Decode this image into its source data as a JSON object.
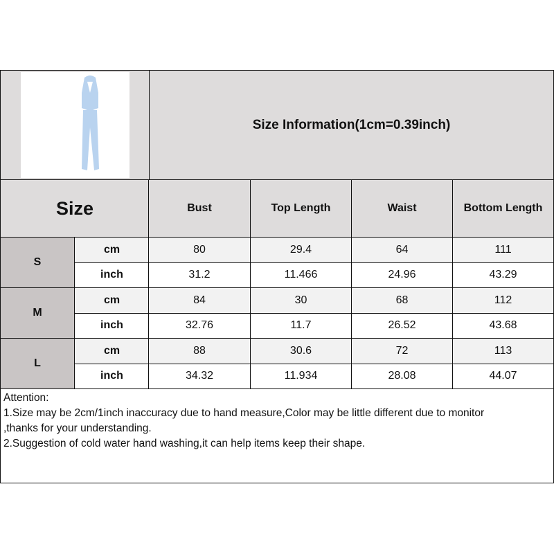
{
  "title": "Size Information(1cm=0.39inch)",
  "size_label": "Size",
  "columns": [
    "Bust",
    "Top Length",
    "Waist",
    "Bottom Length"
  ],
  "units": {
    "cm": "cm",
    "inch": "inch"
  },
  "rows": [
    {
      "size": "S",
      "cm": [
        "80",
        "29.4",
        "64",
        "111"
      ],
      "inch": [
        "31.2",
        "11.466",
        "24.96",
        "43.29"
      ]
    },
    {
      "size": "M",
      "cm": [
        "84",
        "30",
        "68",
        "112"
      ],
      "inch": [
        "32.76",
        "11.7",
        "26.52",
        "43.68"
      ]
    },
    {
      "size": "L",
      "cm": [
        "88",
        "30.6",
        "72",
        "113"
      ],
      "inch": [
        "34.32",
        "11.934",
        "28.08",
        "44.07"
      ]
    }
  ],
  "attention": {
    "heading": "Attention:",
    "line1": "1.Size may be 2cm/1inch inaccuracy due to hand measure,Color may be little different due to monitor",
    "line1b": ",thanks for your understanding.",
    "line2": "2.Suggestion of cold water hand washing,it can help items keep their shape."
  },
  "colors": {
    "header": "#dedcdc",
    "size_cell": "#c9c5c5",
    "cm_row": "#f2f2f2",
    "garment": "#b9d3ef"
  }
}
